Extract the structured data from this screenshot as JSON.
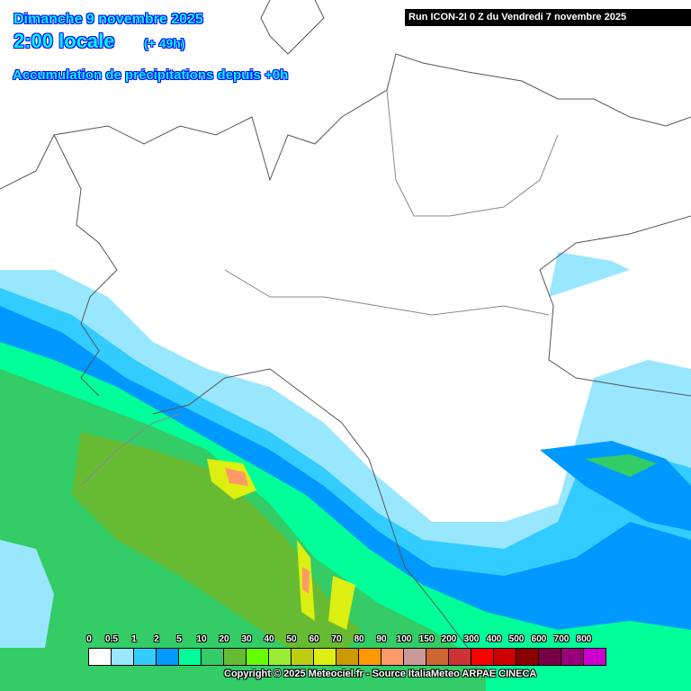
{
  "header": {
    "date": "Dimanche 9 novembre 2025",
    "time": "2:00 locale",
    "offset": "(+ 49h)",
    "product": "Accumulation de précipitations depuis +0h",
    "run": "Run ICON-2I 0 Z du Vendredi 7 novembre 2025"
  },
  "legend": {
    "labels": [
      "0",
      "0.5",
      "1",
      "2",
      "5",
      "10",
      "20",
      "30",
      "40",
      "50",
      "60",
      "70",
      "80",
      "90",
      "100",
      "150",
      "200",
      "300",
      "400",
      "500",
      "600",
      "700",
      "800"
    ],
    "colors": [
      "#ffffff",
      "#99e6ff",
      "#33ccff",
      "#0099ff",
      "#00ff99",
      "#33cc66",
      "#66bb33",
      "#66ff00",
      "#99ee33",
      "#bbcc11",
      "#ddee11",
      "#cc9900",
      "#ff9900",
      "#ff9966",
      "#cc9999",
      "#cc6633",
      "#cc3333",
      "#ff0000",
      "#cc0000",
      "#880000",
      "#770044",
      "#990077",
      "#cc00cc"
    ]
  },
  "footer": {
    "copyright": "Copyright © 2025 Meteociel.fr - Source ItaliaMeteo ARPAE CINECA"
  }
}
